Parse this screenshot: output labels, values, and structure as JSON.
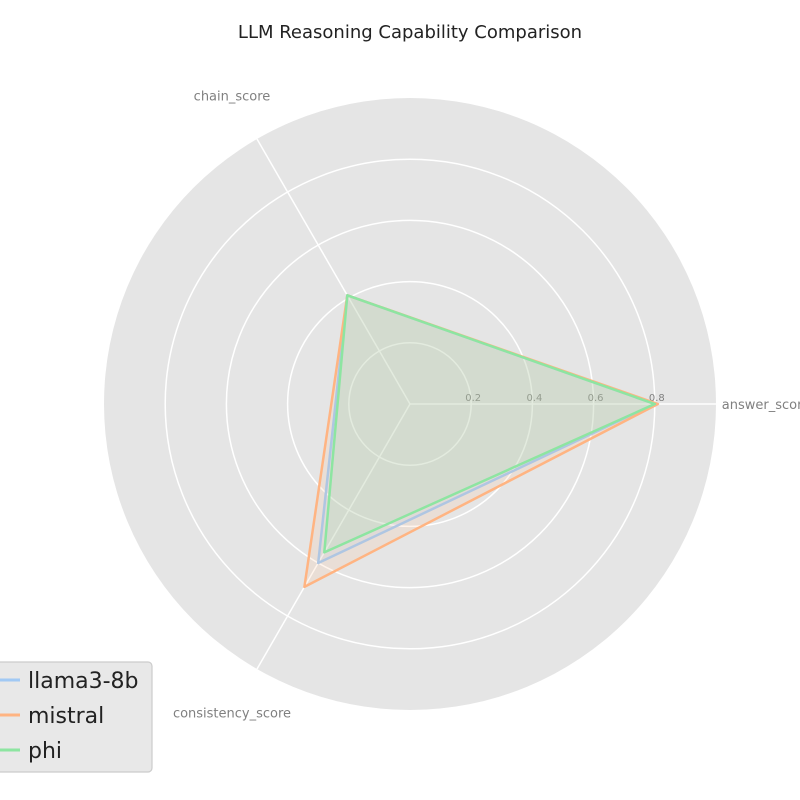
{
  "chart_data": {
    "type": "radar",
    "title": "LLM Reasoning Capability Comparison",
    "axes": [
      "answer_score",
      "chain_score",
      "consistency_score"
    ],
    "radial_ticks": [
      "0.2",
      "0.4",
      "0.6",
      "0.8"
    ],
    "rlim": [
      0,
      1.0
    ],
    "grid": true,
    "legend_position": "lower-left",
    "series": [
      {
        "name": "llama3-8b",
        "color": "#a1c9f4",
        "values": [
          0.8,
          0.41,
          0.6
        ]
      },
      {
        "name": "mistral",
        "color": "#ffb482",
        "values": [
          0.81,
          0.41,
          0.69
        ]
      },
      {
        "name": "phi",
        "color": "#8de5a1",
        "values": [
          0.8,
          0.41,
          0.56
        ]
      }
    ]
  }
}
